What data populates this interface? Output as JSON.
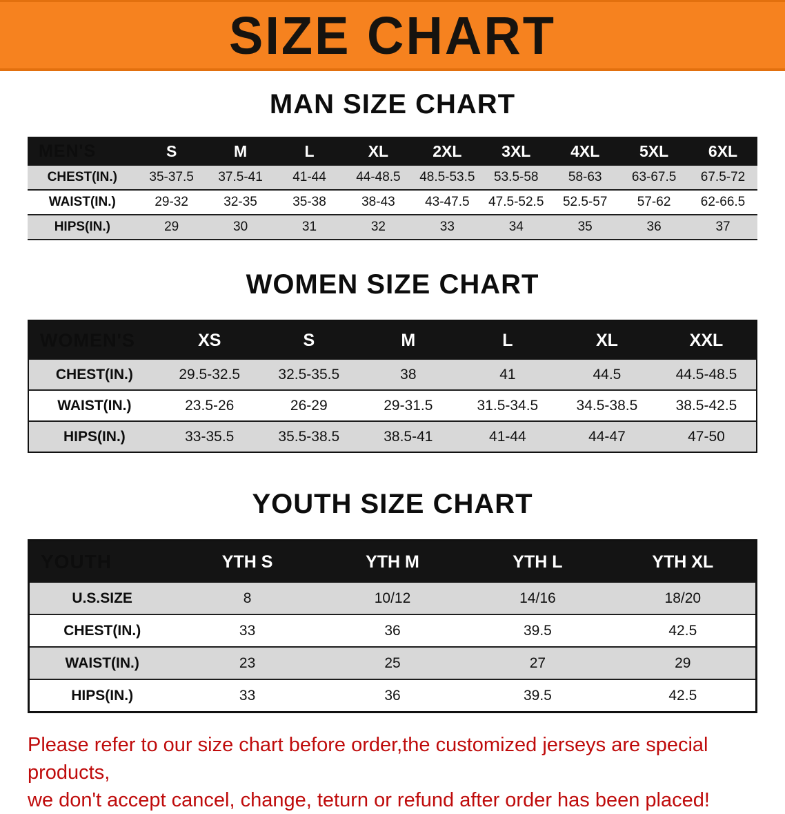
{
  "banner": {
    "title": "SIZE CHART"
  },
  "men": {
    "heading": "MAN SIZE CHART",
    "header": [
      "MEN'S",
      "S",
      "M",
      "L",
      "XL",
      "2XL",
      "3XL",
      "4XL",
      "5XL",
      "6XL"
    ],
    "rows": [
      [
        "CHEST(IN.)",
        "35-37.5",
        "37.5-41",
        "41-44",
        "44-48.5",
        "48.5-53.5",
        "53.5-58",
        "58-63",
        "63-67.5",
        "67.5-72"
      ],
      [
        "WAIST(IN.)",
        "29-32",
        "32-35",
        "35-38",
        "38-43",
        "43-47.5",
        "47.5-52.5",
        "52.5-57",
        "57-62",
        "62-66.5"
      ],
      [
        "HIPS(IN.)",
        "29",
        "30",
        "31",
        "32",
        "33",
        "34",
        "35",
        "36",
        "37"
      ]
    ]
  },
  "women": {
    "heading": "WOMEN SIZE CHART",
    "header": [
      "WOMEN'S",
      "XS",
      "S",
      "M",
      "L",
      "XL",
      "XXL"
    ],
    "rows": [
      [
        "CHEST(IN.)",
        "29.5-32.5",
        "32.5-35.5",
        "38",
        "41",
        "44.5",
        "44.5-48.5"
      ],
      [
        "WAIST(IN.)",
        "23.5-26",
        "26-29",
        "29-31.5",
        "31.5-34.5",
        "34.5-38.5",
        "38.5-42.5"
      ],
      [
        "HIPS(IN.)",
        "33-35.5",
        "35.5-38.5",
        "38.5-41",
        "41-44",
        "44-47",
        "47-50"
      ]
    ]
  },
  "youth": {
    "heading": "YOUTH SIZE CHART",
    "header": [
      "YOUTH",
      "YTH S",
      "YTH M",
      "YTH L",
      "YTH XL"
    ],
    "rows": [
      [
        "U.S.SIZE",
        "8",
        "10/12",
        "14/16",
        "18/20"
      ],
      [
        "CHEST(IN.)",
        "33",
        "36",
        "39.5",
        "42.5"
      ],
      [
        "WAIST(IN.)",
        "23",
        "25",
        "27",
        "29"
      ],
      [
        "HIPS(IN.)",
        "33",
        "36",
        "39.5",
        "42.5"
      ]
    ]
  },
  "footer": {
    "line1": "Please refer to our size chart before order,the customized jerseys are special products,",
    "line2": "we don't accept cancel, change, teturn or refund after order has been placed!"
  },
  "colors": {
    "banner_bg": "#f6821f",
    "banner_text": "#16130f",
    "table_header_bg": "#141414",
    "table_header_text": "#ffffff",
    "row_stripe": "#d8d8d8",
    "footer_text": "#bf0b0b"
  }
}
